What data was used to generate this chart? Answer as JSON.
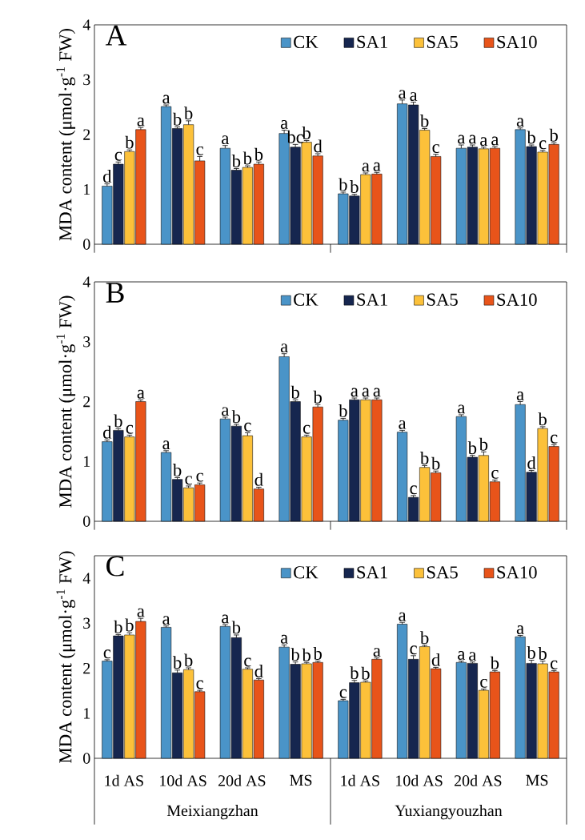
{
  "chart_data": [
    {
      "type": "bar",
      "title": "A",
      "ylabel": "MDA content (μmol·g$^{-1}$ FW)",
      "categories": [
        null,
        null,
        null,
        null,
        null,
        null,
        null,
        null
      ],
      "ylim": [
        0,
        4
      ],
      "yticks": [
        0,
        1,
        2,
        3,
        4
      ],
      "legend": "top right",
      "tick_labels": "y",
      "series": [
        {
          "name": "CK",
          "color": "#4a94c8",
          "values": [
            1.06,
            2.51,
            1.75,
            2.02,
            0.92,
            2.56,
            1.75,
            2.09
          ],
          "errors": [
            0.04,
            0.03,
            0.05,
            0.06,
            0.03,
            0.07,
            0.06,
            0.03
          ],
          "value_labels": [
            "d",
            "a",
            "a",
            "a",
            "b",
            "a",
            "a",
            "a"
          ]
        },
        {
          "name": "SA1",
          "color": "#16264f",
          "values": [
            1.46,
            2.11,
            1.35,
            1.77,
            0.88,
            2.54,
            1.77,
            1.78
          ],
          "errors": [
            0.04,
            0.03,
            0.03,
            0.05,
            0.03,
            0.05,
            0.04,
            0.03
          ],
          "value_labels": [
            "c",
            "b",
            "b",
            "bc",
            "b",
            "a",
            "a",
            "b"
          ]
        },
        {
          "name": "SA5",
          "color": "#fcc13a",
          "values": [
            1.69,
            2.18,
            1.4,
            1.86,
            1.27,
            2.08,
            1.74,
            1.68
          ],
          "errors": [
            0.03,
            0.07,
            0.03,
            0.03,
            0.03,
            0.03,
            0.03,
            0.03
          ],
          "value_labels": [
            "b",
            "b",
            "b",
            "b",
            "a",
            "b",
            "a",
            "c"
          ]
        },
        {
          "name": "SA10",
          "color": "#e8541a",
          "values": [
            2.09,
            1.52,
            1.46,
            1.61,
            1.28,
            1.6,
            1.75,
            1.82
          ],
          "errors": [
            0.04,
            0.08,
            0.04,
            0.04,
            0.03,
            0.04,
            0.03,
            0.03
          ],
          "value_labels": [
            "a",
            "c",
            "b",
            "d",
            "a",
            "c",
            "a",
            "b"
          ]
        }
      ]
    },
    {
      "type": "bar",
      "title": "B",
      "ylabel": "MDA content (μmol·g$^{-1}$ FW)",
      "categories": [
        null,
        null,
        null,
        null,
        null,
        null,
        null,
        null
      ],
      "ylim": [
        0,
        4
      ],
      "yticks": [
        0,
        1,
        2,
        3,
        4
      ],
      "legend": "top right",
      "tick_labels": "y",
      "series": [
        {
          "name": "CK",
          "color": "#4a94c8",
          "values": [
            1.33,
            1.15,
            1.71,
            2.75,
            1.69,
            1.49,
            1.75,
            1.95
          ],
          "errors": [
            0.03,
            0.03,
            0.03,
            0.05,
            0.03,
            0.03,
            0.03,
            0.05
          ],
          "value_labels": [
            "d",
            "a",
            "a",
            "a",
            "b",
            "a",
            "a",
            "a"
          ]
        },
        {
          "name": "SA1",
          "color": "#16264f",
          "values": [
            1.52,
            0.7,
            1.59,
            2.0,
            2.03,
            0.4,
            1.07,
            0.82
          ],
          "errors": [
            0.03,
            0.03,
            0.03,
            0.03,
            0.03,
            0.03,
            0.03,
            0.03
          ],
          "value_labels": [
            "b",
            "b",
            "b",
            "b",
            "a",
            "c",
            "b",
            "d"
          ]
        },
        {
          "name": "SA5",
          "color": "#fcc13a",
          "values": [
            1.41,
            0.56,
            1.43,
            1.41,
            2.03,
            0.9,
            1.1,
            1.55
          ],
          "errors": [
            0.03,
            0.03,
            0.05,
            0.03,
            0.03,
            0.03,
            0.06,
            0.03
          ],
          "value_labels": [
            "c",
            "c",
            "c",
            "c",
            "a",
            "b",
            "b",
            "b"
          ]
        },
        {
          "name": "SA10",
          "color": "#e8541a",
          "values": [
            2.0,
            0.61,
            0.54,
            1.91,
            2.03,
            0.81,
            0.66,
            1.25
          ],
          "errors": [
            0.03,
            0.03,
            0.03,
            0.04,
            0.03,
            0.03,
            0.03,
            0.03
          ],
          "value_labels": [
            "a",
            "c",
            "d",
            "b",
            "a",
            "b",
            "c",
            "c"
          ]
        }
      ]
    },
    {
      "type": "bar",
      "title": "C",
      "ylabel": "MDA content (μmol·g$^{-1}$ FW)",
      "categories": [
        "1d AS",
        "10d AS",
        "20d AS",
        "MS",
        "1d AS",
        "10d AS",
        "20d AS",
        "MS"
      ],
      "ylim": [
        0,
        4.5
      ],
      "yticks": [
        0,
        1,
        2,
        3,
        4
      ],
      "legend": "top right",
      "annotations": [
        "Meixiangzhan",
        "Yuxiangyouzhan"
      ],
      "series": [
        {
          "name": "CK",
          "color": "#4a94c8",
          "values": [
            2.16,
            2.91,
            2.93,
            2.47,
            1.28,
            2.98,
            2.13,
            2.7
          ],
          "errors": [
            0.03,
            0.03,
            0.04,
            0.05,
            0.03,
            0.04,
            0.03,
            0.03
          ],
          "value_labels": [
            "c",
            "a",
            "a",
            "a",
            "c",
            "a",
            "a",
            "a"
          ]
        },
        {
          "name": "SA1",
          "color": "#16264f",
          "values": [
            2.72,
            1.9,
            2.68,
            2.09,
            1.68,
            2.2,
            2.11,
            2.11
          ],
          "errors": [
            0.03,
            0.06,
            0.06,
            0.05,
            0.05,
            0.08,
            0.03,
            0.07
          ],
          "value_labels": [
            "b",
            "b",
            "b",
            "b",
            "b",
            "c",
            "a",
            "b"
          ]
        },
        {
          "name": "SA5",
          "color": "#fcc13a",
          "values": [
            2.74,
            1.97,
            1.98,
            2.1,
            1.69,
            2.48,
            1.51,
            2.1
          ],
          "errors": [
            0.05,
            0.04,
            0.03,
            0.03,
            0.03,
            0.03,
            0.03,
            0.06
          ],
          "value_labels": [
            "b",
            "b",
            "c",
            "b",
            "b",
            "b",
            "c",
            "b"
          ]
        },
        {
          "name": "SA10",
          "color": "#e8541a",
          "values": [
            3.04,
            1.48,
            1.74,
            2.13,
            2.2,
            1.99,
            1.92,
            1.92
          ],
          "errors": [
            0.07,
            0.03,
            0.03,
            0.03,
            0.03,
            0.03,
            0.03,
            0.03
          ],
          "value_labels": [
            "a",
            "c",
            "d",
            "b",
            "a",
            "d",
            "b",
            "c"
          ]
        }
      ]
    }
  ]
}
